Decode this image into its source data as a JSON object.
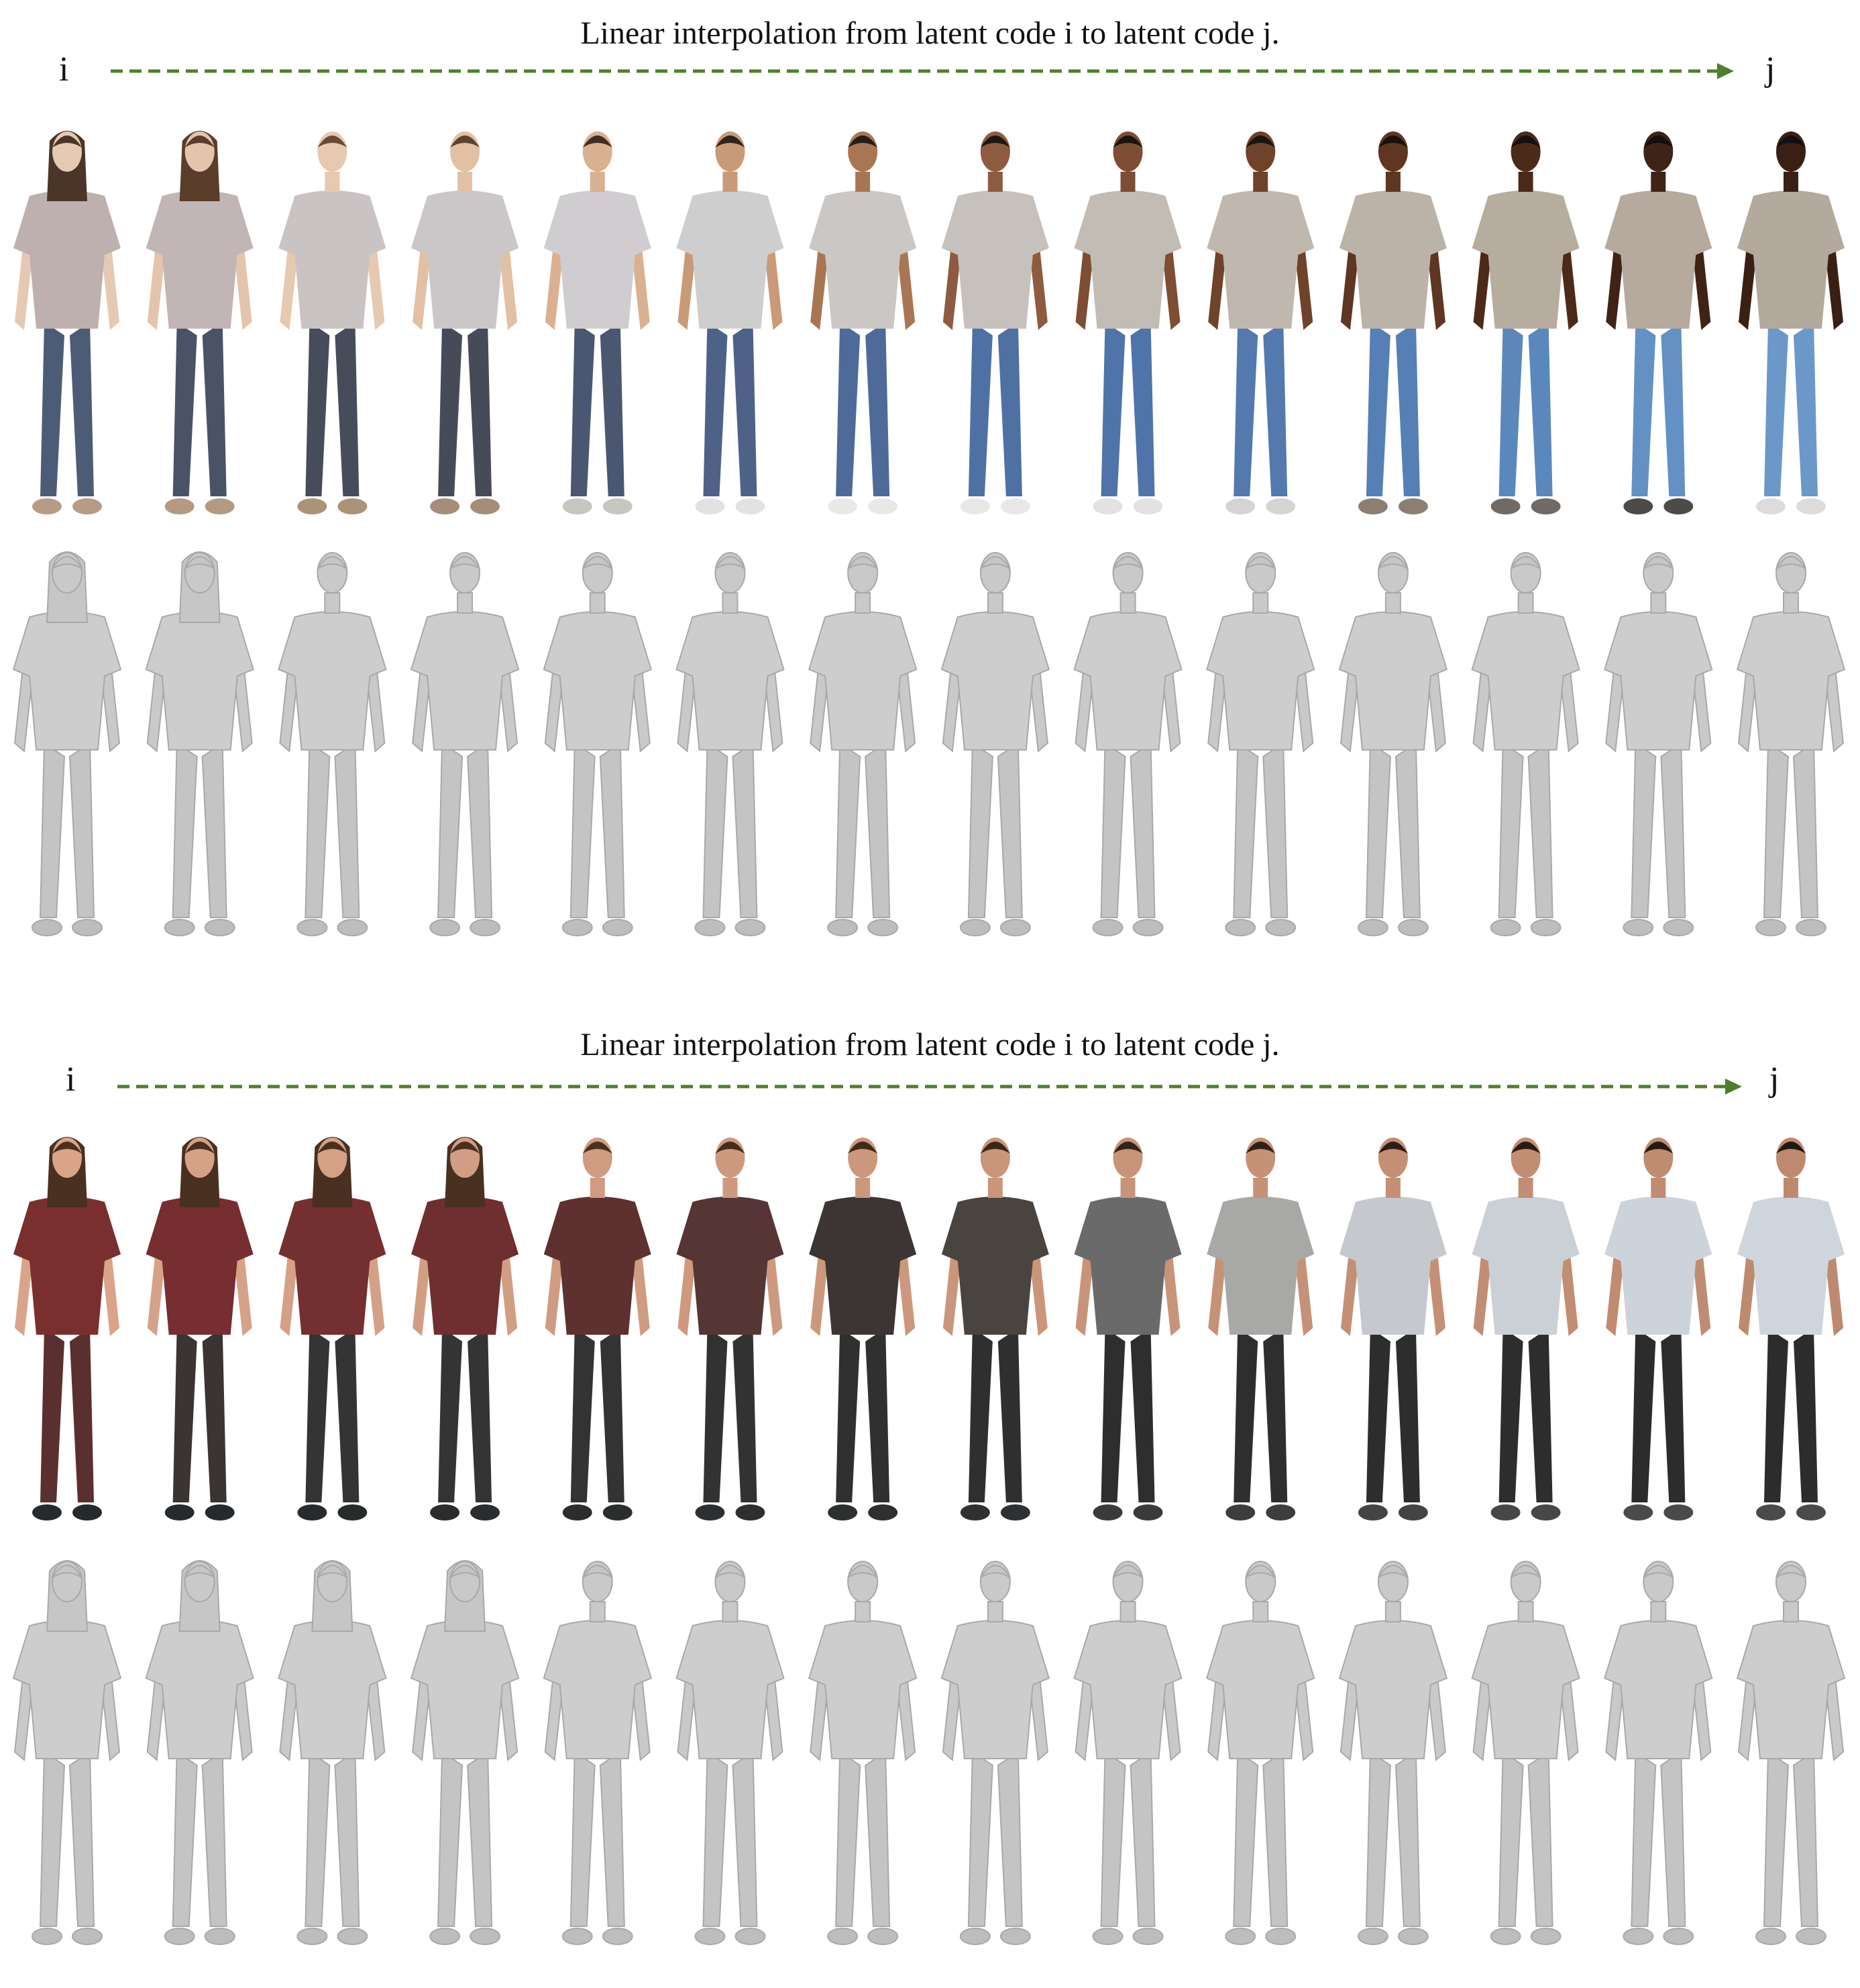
{
  "panels": [
    {
      "caption": "Linear interpolation from latent code i to latent code j.",
      "start_label": "i",
      "end_label": "j",
      "arrow_color": "#4f7f2e",
      "steps": 14,
      "textured": {
        "skin": [
          "#e6c9b4",
          "#e3c4ad",
          "#e7c8b0",
          "#e2c0a4",
          "#d9b191",
          "#c99a78",
          "#a97654",
          "#8d5c40",
          "#7d4e34",
          "#6f4329",
          "#5e3622",
          "#4c2a1a",
          "#3f2316",
          "#3a2014"
        ],
        "top": [
          "#bdb0ae",
          "#c1b6b5",
          "#c9c3c4",
          "#cbc7c8",
          "#cfcdd0",
          "#cfcecf",
          "#cac7c4",
          "#c6c1bc",
          "#c2bcb4",
          "#c0b8ae",
          "#bbb3a7",
          "#b7ad9f",
          "#b5aa9d",
          "#b4a99d"
        ],
        "bottom": [
          "#4d5c76",
          "#4a5366",
          "#474c5a",
          "#464b57",
          "#4b5670",
          "#4e6287",
          "#4e6a99",
          "#4f70a3",
          "#5074aa",
          "#5379ae",
          "#5680b5",
          "#5a88bd",
          "#6391c4",
          "#6b98c8"
        ],
        "shoes": [
          "#b69c85",
          "#b49a82",
          "#ab9379",
          "#a48e78",
          "#c8c6c0",
          "#e2e2e2",
          "#e8e8e8",
          "#e8e8e8",
          "#e2e2e2",
          "#d4d4d4",
          "#8b7f74",
          "#6f6a66",
          "#4d4b4a",
          "#dcdcdc"
        ],
        "hair": [
          "#4a3528",
          "#5a3d2a",
          "#6a4a35",
          "#5a4331",
          "#3f2e23",
          "#2f241d",
          "#241c17",
          "#1d1713",
          "#1a1410",
          "#1a1410",
          "#18120e",
          "#151010",
          "#121010",
          "#121010"
        ],
        "long_hair": [
          true,
          true,
          false,
          false,
          false,
          false,
          false,
          false,
          false,
          false,
          false,
          false,
          false,
          false
        ]
      }
    },
    {
      "caption": "Linear interpolation from latent code i to latent code j.",
      "start_label": "i",
      "end_label": "j",
      "arrow_color": "#4f7f2e",
      "steps": 14,
      "textured": {
        "skin": [
          "#d9a48a",
          "#d6a287",
          "#d4a086",
          "#d19e84",
          "#cf9c82",
          "#cd9a80",
          "#cb987e",
          "#c9967c",
          "#c7947a",
          "#c59278",
          "#c39076",
          "#c18e74",
          "#bf8c72",
          "#bd8a70"
        ],
        "top": [
          "#7a2f2f",
          "#762e30",
          "#742f30",
          "#6f2e30",
          "#5e3030",
          "#553634",
          "#3c3533",
          "#4a4440",
          "#6a6a6a",
          "#a8a8a6",
          "#c5c8cc",
          "#cbd0d6",
          "#cdd3da",
          "#cfd5dc"
        ],
        "bottom": [
          "#5a2f30",
          "#3a3433",
          "#343434",
          "#343434",
          "#333333",
          "#323232",
          "#303030",
          "#2f2f2f",
          "#2e2e2e",
          "#2e2e2e",
          "#2d2d2d",
          "#2d2d2d",
          "#2c2c2c",
          "#2c2c2c"
        ],
        "shoes": [
          "#252a2c",
          "#262a2c",
          "#282b2c",
          "#2a2c2d",
          "#2c2d2e",
          "#2d2e2f",
          "#2e2f30",
          "#2f3031",
          "#3a3a3a",
          "#3d3d3d",
          "#444444",
          "#474747",
          "#4a4a4a",
          "#4a4a4a"
        ],
        "hair": [
          "#4a3020",
          "#4a3020",
          "#4a3020",
          "#4a3020",
          "#4a3020",
          "#452d1e",
          "#3f2a1c",
          "#3a271a",
          "#352418",
          "#302116",
          "#2c1e14",
          "#281c12",
          "#251a11",
          "#221810"
        ],
        "long_hair": [
          true,
          true,
          true,
          true,
          false,
          false,
          false,
          false,
          false,
          false,
          false,
          false,
          false,
          false
        ]
      }
    }
  ]
}
